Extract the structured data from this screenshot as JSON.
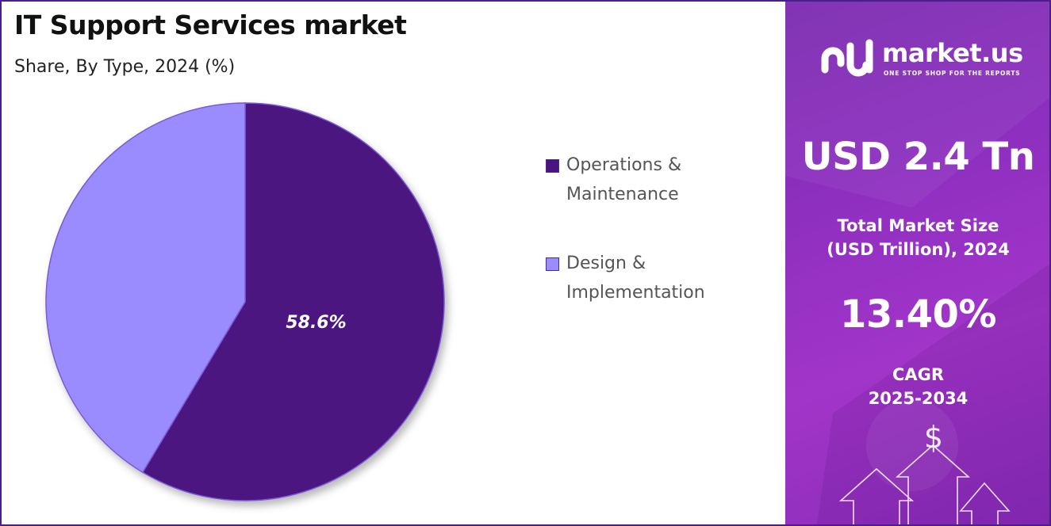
{
  "title": "IT Support Services market",
  "subtitle": "Share, By Type, 2024 (%)",
  "colors": {
    "operations": "#4b1480",
    "design": "#9a8cff",
    "panel_purple": "#8e2fc0",
    "border": "#4b1f8a"
  },
  "chart_data": {
    "type": "pie",
    "title": "IT Support Services market",
    "subtitle": "Share, By Type, 2024 (%)",
    "categories": [
      "Operations & Maintenance",
      "Design & Implementation"
    ],
    "values": [
      58.6,
      41.4
    ],
    "data_labels": [
      "58.6%",
      ""
    ],
    "legend_placement": "right"
  },
  "legend": [
    {
      "label": "Operations &\nMaintenance",
      "color": "#4b1480",
      "icon": "square-swatch"
    },
    {
      "label": " Design &\nImplementation",
      "color": "#9a8cff",
      "icon": "square-swatch"
    }
  ],
  "sidebar": {
    "logo_text": "market.us",
    "logo_tagline": "ONE STOP SHOP FOR THE REPORTS",
    "logo_icon": "market-us-logo-icon",
    "market_size_value": "USD 2.4 Tn",
    "market_size_label": "Total Market Size\n(USD Trillion), 2024",
    "cagr_value": "13.40%",
    "cagr_label": "CAGR\n2025-2034",
    "dollar_symbol": "$"
  }
}
